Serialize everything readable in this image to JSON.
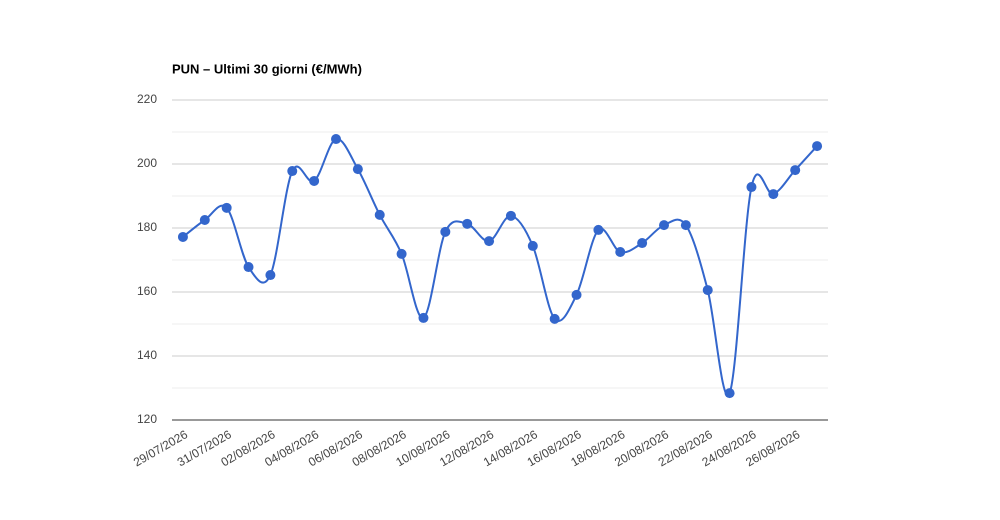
{
  "chart_data": {
    "type": "line",
    "title": "PUN – Ultimi 30 giorni (€/MWh)",
    "categories": [
      "29/07/2026",
      null,
      "31/07/2026",
      null,
      "02/08/2026",
      null,
      "04/08/2026",
      null,
      "06/08/2026",
      null,
      "08/08/2026",
      null,
      "10/08/2026",
      null,
      "12/08/2026",
      null,
      "14/08/2026",
      null,
      "16/08/2026",
      null,
      "18/08/2026",
      null,
      "20/08/2026",
      null,
      "22/08/2026",
      null,
      "24/08/2026",
      null,
      "26/08/2026",
      null
    ],
    "series": [
      {
        "color": "#3366cc",
        "values": [
          177.2,
          182.5,
          186.3,
          167.8,
          165.3,
          197.8,
          194.7,
          207.8,
          198.4,
          184.1,
          171.9,
          151.9,
          178.8,
          181.3,
          175.9,
          183.8,
          174.4,
          151.6,
          159.1,
          179.4,
          172.5,
          175.3,
          180.9,
          180.9,
          160.6,
          128.4,
          192.8,
          190.6,
          198.1,
          205.6
        ]
      }
    ],
    "ylim": [
      120,
      220
    ],
    "yticks": [
      120,
      140,
      160,
      180,
      200,
      220
    ],
    "grid": true
  }
}
